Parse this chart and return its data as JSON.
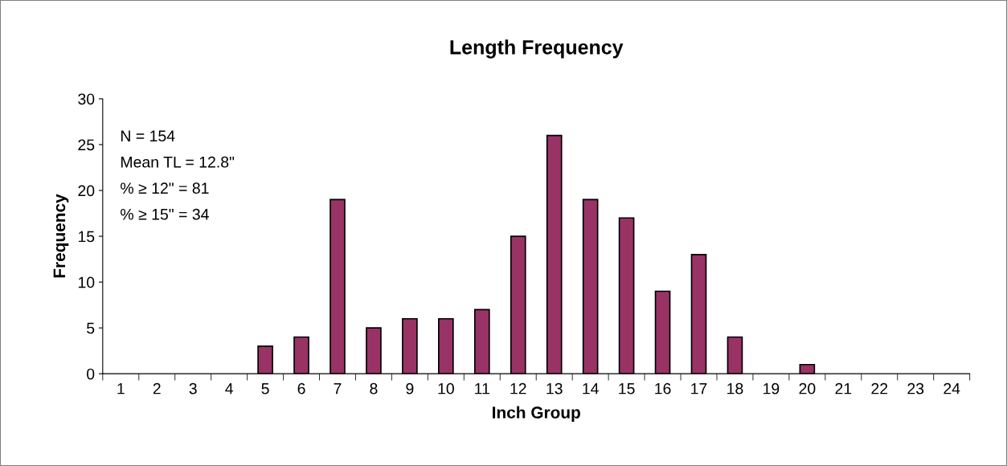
{
  "chart_data": {
    "type": "bar",
    "title": "Length Frequency",
    "xlabel": "Inch Group",
    "ylabel": "Frequency",
    "categories": [
      "1",
      "2",
      "3",
      "4",
      "5",
      "6",
      "7",
      "8",
      "9",
      "10",
      "11",
      "12",
      "13",
      "14",
      "15",
      "16",
      "17",
      "18",
      "19",
      "20",
      "21",
      "22",
      "23",
      "24"
    ],
    "values": [
      0,
      0,
      0,
      0,
      3,
      4,
      19,
      5,
      6,
      6,
      7,
      15,
      26,
      19,
      17,
      9,
      13,
      4,
      0,
      1,
      0,
      0,
      0,
      0
    ],
    "color": "#993366",
    "ylim": [
      0,
      30
    ],
    "yticks": [
      0,
      5,
      10,
      15,
      20,
      25,
      30
    ],
    "grid": false,
    "legend": false,
    "annotations": [
      "N = 154",
      "Mean TL = 12.8\"",
      "% ≥ 12\" = 81",
      "% ≥ 15\" = 34"
    ]
  }
}
